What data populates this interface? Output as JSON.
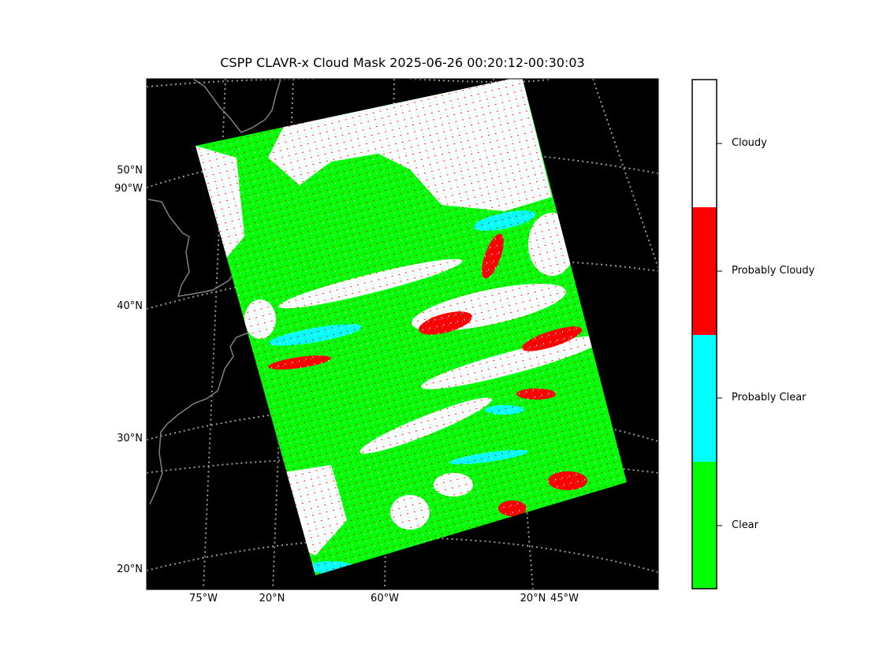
{
  "title": "CSPP CLAVR-x Cloud Mask 2025-06-26 00:20:12-00:30:03",
  "map": {
    "type": "satellite-cloud-mask",
    "background_color": "#000000",
    "coastline_color": "#808080",
    "gridline_color": "#999999",
    "lat_labels": [
      "50°N",
      "90°W",
      "40°N",
      "30°N",
      "20°N"
    ],
    "lon_labels": [
      "75°W",
      "20°N",
      "60°W",
      "20°N",
      "45°W"
    ]
  },
  "legend": {
    "categories": [
      {
        "label": "Cloudy",
        "color": "#ffffff"
      },
      {
        "label": "Probably Cloudy",
        "color": "#ff0000"
      },
      {
        "label": "Probably Clear",
        "color": "#00ffff"
      },
      {
        "label": "Clear",
        "color": "#00ff00"
      }
    ]
  }
}
